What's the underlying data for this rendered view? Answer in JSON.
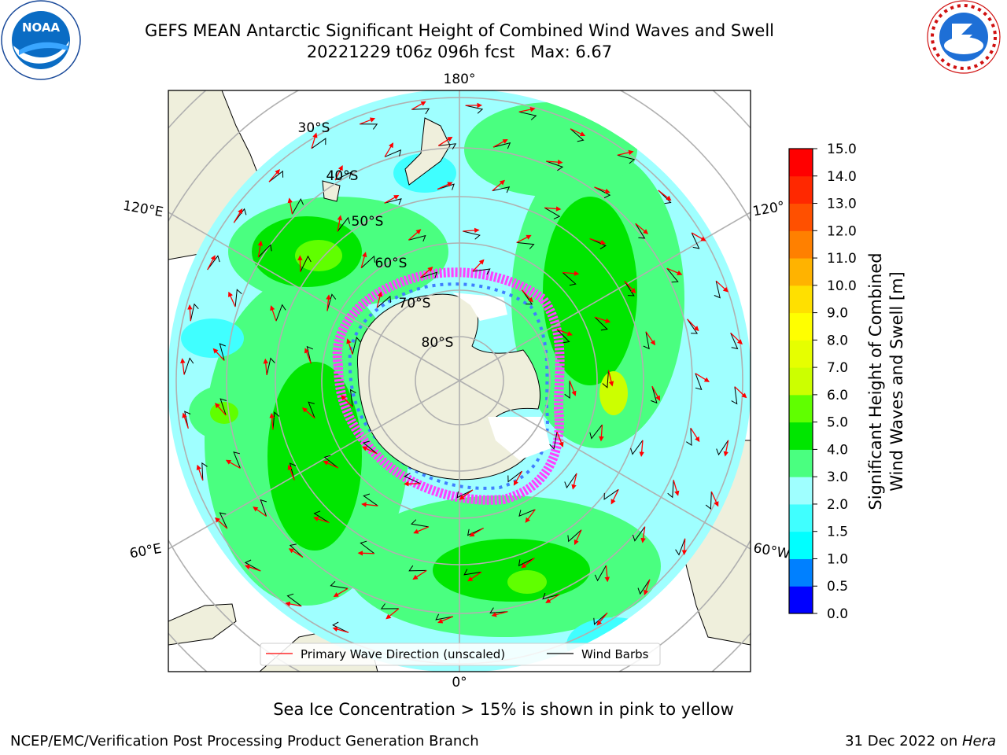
{
  "title": {
    "line1": "GEFS MEAN Antarctic Significant Height of Combined Wind Waves and Swell",
    "line2": "20221229 t06z 096h fcst   Max: 6.67"
  },
  "logos": {
    "left": "NOAA",
    "left_ring": "NATIONAL OCEANIC AND ATMOSPHERIC ADMINISTRATION · U.S. DEPARTMENT OF COMMERCE",
    "right_ring": "NATIONAL WEATHER SERVICE"
  },
  "map": {
    "longitude_labels": [
      "180°",
      "120°E",
      "120°",
      "60°E",
      "60°W",
      "0°"
    ],
    "latitude_labels": [
      "30°S",
      "40°S",
      "50°S",
      "60°S",
      "70°S",
      "80°S"
    ]
  },
  "legend": {
    "primary": "Primary Wave Direction (unscaled)",
    "barbs": "Wind Barbs",
    "primary_color": "#ff0000",
    "barbs_color": "#000000"
  },
  "colorbar": {
    "label": "Significant Height of Combined Wind Waves and Swell [m]",
    "ticks": [
      "0.0",
      "0.5",
      "1.0",
      "1.5",
      "2.0",
      "3.0",
      "4.0",
      "5.0",
      "6.0",
      "7.0",
      "8.0",
      "9.0",
      "10.0",
      "11.0",
      "12.0",
      "13.0",
      "14.0",
      "15.0"
    ],
    "colors": [
      "#0000ff",
      "#0080ff",
      "#00ffff",
      "#40ffff",
      "#9fffff",
      "#4aff80",
      "#00e600",
      "#60ff00",
      "#ccff00",
      "#e6ff00",
      "#ffff00",
      "#ffe000",
      "#ffb300",
      "#ff8000",
      "#ff5000",
      "#ff2800",
      "#ff0000"
    ]
  },
  "notes": {
    "ice": "Sea Ice Concentration > 15% is shown in pink to yellow",
    "footer_left": "NCEP/EMC/Verification Post Processing Product Generation Branch",
    "footer_date": "31 Dec 2022 on ",
    "footer_machine": "Hera"
  }
}
